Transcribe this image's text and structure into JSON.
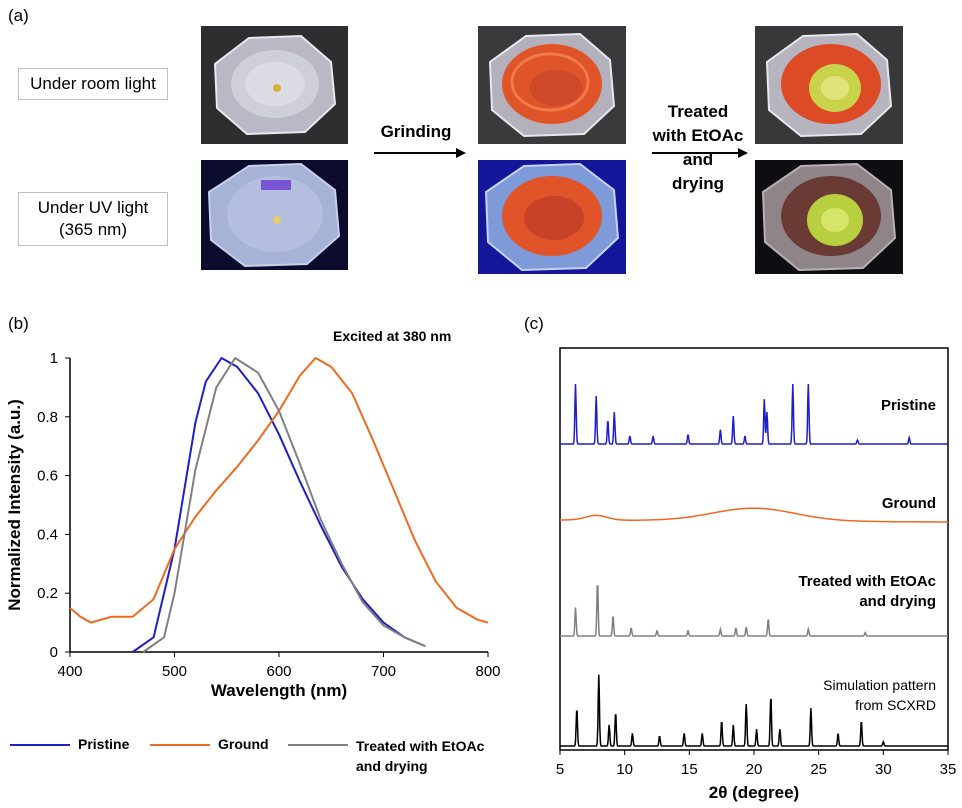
{
  "panel_a": {
    "label": "(a)",
    "row_labels": [
      "Under room light",
      "Under UV light\n(365 nm)"
    ],
    "arrow1": "Grinding",
    "arrow2": "Treated\nwith EtOAc\nand\ndrying"
  },
  "panel_b": {
    "label": "(b)",
    "excitation_note": "Excited at 380 nm"
  },
  "panel_c": {
    "label": "(c)",
    "trace_labels": [
      "Pristine",
      "Ground",
      "Treated with EtOAc\nand drying",
      "Simulation pattern\nfrom SCXRD"
    ]
  },
  "colors": {
    "pristine": "#1f1fc8",
    "ground": "#ee6a1e",
    "treated": "#808080",
    "simulation": "#000000"
  },
  "chart_data": [
    {
      "type": "line",
      "xlabel": "Wavelength (nm)",
      "ylabel": "Normalized Intensity (a.u.)",
      "xlim": [
        400,
        800
      ],
      "ylim": [
        0,
        1
      ],
      "xticks": [
        400,
        500,
        600,
        700,
        800
      ],
      "yticks": [
        0,
        0.2,
        0.4,
        0.6,
        0.8,
        1
      ],
      "legend_position": "bottom",
      "series": [
        {
          "name": "Pristine",
          "x": [
            460,
            480,
            500,
            520,
            530,
            545,
            560,
            580,
            600,
            620,
            640,
            660,
            680,
            700,
            720,
            740
          ],
          "y": [
            0.0,
            0.05,
            0.35,
            0.78,
            0.92,
            1.0,
            0.97,
            0.88,
            0.74,
            0.58,
            0.43,
            0.29,
            0.18,
            0.1,
            0.05,
            0.02
          ]
        },
        {
          "name": "Ground",
          "x": [
            400,
            410,
            420,
            440,
            460,
            480,
            500,
            520,
            540,
            560,
            580,
            600,
            620,
            635,
            650,
            670,
            690,
            710,
            730,
            750,
            770,
            790,
            800
          ],
          "y": [
            0.15,
            0.12,
            0.1,
            0.12,
            0.12,
            0.18,
            0.35,
            0.46,
            0.55,
            0.63,
            0.72,
            0.82,
            0.94,
            1.0,
            0.97,
            0.88,
            0.72,
            0.55,
            0.38,
            0.24,
            0.15,
            0.11,
            0.1
          ]
        },
        {
          "name": "Treated with EtOAc and drying",
          "x": [
            470,
            490,
            500,
            520,
            540,
            558,
            580,
            600,
            620,
            640,
            660,
            680,
            700,
            720,
            740
          ],
          "y": [
            0.0,
            0.05,
            0.2,
            0.62,
            0.9,
            1.0,
            0.95,
            0.82,
            0.64,
            0.45,
            0.3,
            0.17,
            0.09,
            0.05,
            0.02
          ]
        }
      ]
    },
    {
      "type": "line",
      "xlabel": "2θ (degree)",
      "ylabel": "",
      "xlim": [
        5,
        35
      ],
      "xticks": [
        5,
        10,
        15,
        20,
        25,
        30,
        35
      ],
      "series": [
        {
          "name": "Pristine",
          "baseline": 0.0,
          "peaks": [
            [
              6.2,
              0.75
            ],
            [
              7.8,
              0.6
            ],
            [
              8.7,
              0.3
            ],
            [
              9.2,
              0.4
            ],
            [
              10.4,
              0.1
            ],
            [
              12.2,
              0.1
            ],
            [
              14.9,
              0.12
            ],
            [
              17.4,
              0.18
            ],
            [
              18.4,
              0.35
            ],
            [
              19.3,
              0.1
            ],
            [
              20.8,
              0.56
            ],
            [
              21.0,
              0.4
            ],
            [
              23.0,
              0.75
            ],
            [
              24.2,
              0.75
            ],
            [
              28.0,
              0.05
            ],
            [
              32.0,
              0.08
            ]
          ]
        },
        {
          "name": "Ground",
          "broad": true
        },
        {
          "name": "Treated with EtOAc and drying",
          "baseline": 0.0,
          "peaks": [
            [
              6.2,
              0.42
            ],
            [
              7.9,
              0.8
            ],
            [
              9.1,
              0.3
            ],
            [
              10.5,
              0.12
            ],
            [
              12.5,
              0.08
            ],
            [
              14.9,
              0.08
            ],
            [
              17.4,
              0.1
            ],
            [
              18.6,
              0.12
            ],
            [
              19.4,
              0.13
            ],
            [
              21.1,
              0.25
            ],
            [
              24.2,
              0.1
            ],
            [
              28.6,
              0.05
            ]
          ]
        },
        {
          "name": "Simulation pattern from SCXRD",
          "baseline": 0.0,
          "peaks": [
            [
              6.3,
              0.45
            ],
            [
              8.0,
              0.85
            ],
            [
              8.8,
              0.25
            ],
            [
              9.3,
              0.4
            ],
            [
              10.6,
              0.15
            ],
            [
              12.7,
              0.12
            ],
            [
              14.6,
              0.15
            ],
            [
              16.0,
              0.15
            ],
            [
              17.5,
              0.3
            ],
            [
              18.4,
              0.25
            ],
            [
              19.4,
              0.5
            ],
            [
              20.2,
              0.2
            ],
            [
              21.3,
              0.6
            ],
            [
              22.0,
              0.2
            ],
            [
              24.4,
              0.45
            ],
            [
              26.5,
              0.15
            ],
            [
              28.3,
              0.3
            ],
            [
              30.0,
              0.05
            ]
          ]
        }
      ]
    }
  ]
}
